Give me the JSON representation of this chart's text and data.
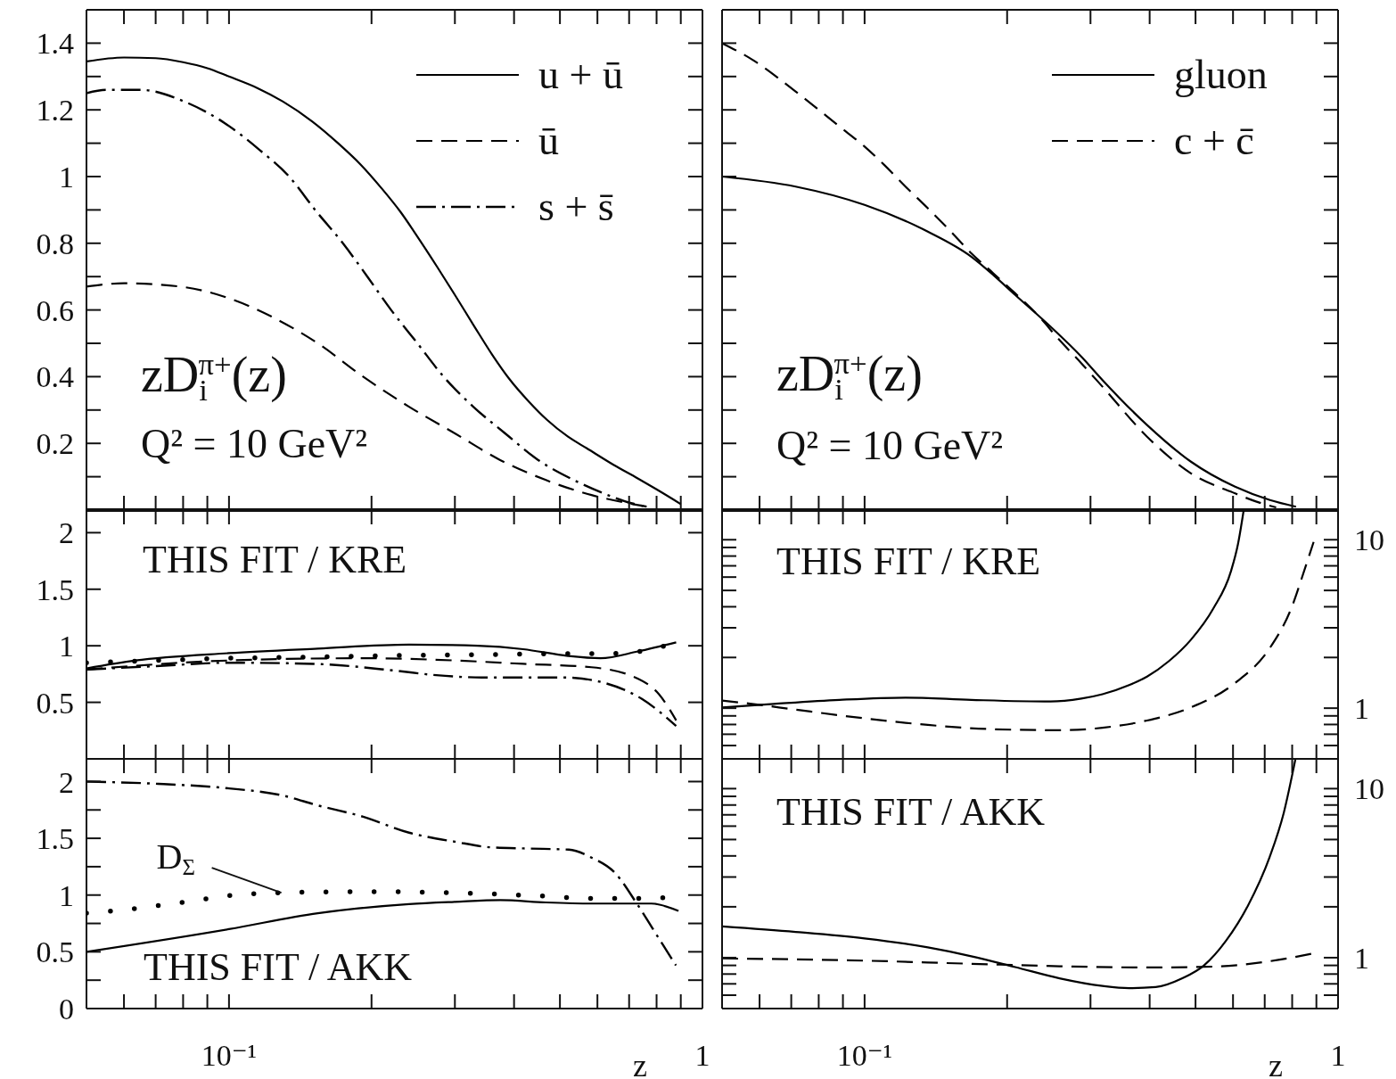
{
  "chart_data": [
    {
      "type": "line",
      "log": "x",
      "tick_labels": "y",
      "legend": "top right",
      "xlim": [
        0.05,
        1
      ],
      "xticks": [
        {
          "value": 0.06,
          "label": null
        },
        {
          "value": 0.07,
          "label": null
        },
        {
          "value": 0.08,
          "label": null
        },
        {
          "value": 0.09,
          "label": null
        },
        {
          "value": 0.1,
          "label": null
        },
        {
          "value": 0.2,
          "label": null
        },
        {
          "value": 0.3,
          "label": null
        },
        {
          "value": 0.4,
          "label": null
        },
        {
          "value": 0.5,
          "label": null
        },
        {
          "value": 0.6,
          "label": null
        },
        {
          "value": 0.7,
          "label": null
        },
        {
          "value": 0.8,
          "label": null
        },
        {
          "value": 0.9,
          "label": null
        },
        {
          "value": 1,
          "label": null
        }
      ],
      "ylim": [
        0,
        1.5
      ],
      "yticks": [
        {
          "value": 0.1,
          "label": null
        },
        0.2,
        {
          "value": 0.3,
          "label": null
        },
        0.4,
        {
          "value": 0.5,
          "label": null
        },
        0.6,
        {
          "value": 0.7,
          "label": null
        },
        0.8,
        {
          "value": 0.9,
          "label": null
        },
        1,
        {
          "value": 1.1,
          "label": null
        },
        1.2,
        {
          "value": 1.3,
          "label": null
        },
        1.4
      ],
      "annotations": [
        "zD$_{i}$$^{π+}$(z)",
        "Q² = 10 GeV²"
      ],
      "series": [
        {
          "name": "u + ū",
          "color": "#000000",
          "line_style": "solid",
          "x": [
            0.05,
            0.06,
            0.07,
            0.08,
            0.09,
            0.1,
            0.115,
            0.13,
            0.15,
            0.17,
            0.19,
            0.21,
            0.23,
            0.25,
            0.275,
            0.3,
            0.33,
            0.36,
            0.39,
            0.43,
            0.47,
            0.52,
            0.57,
            0.65,
            0.73,
            0.8,
            0.9
          ],
          "values": [
            1.345,
            1.357,
            1.355,
            1.343,
            1.325,
            1.3,
            1.265,
            1.225,
            1.165,
            1.1,
            1.035,
            0.965,
            0.895,
            0.82,
            0.73,
            0.645,
            0.55,
            0.465,
            0.395,
            0.325,
            0.27,
            0.22,
            0.185,
            0.135,
            0.095,
            0.062,
            0.018
          ]
        },
        {
          "name": "ū",
          "color": "#000000",
          "line_style": "dashed",
          "x": [
            0.05,
            0.06,
            0.079,
            0.1,
            0.123,
            0.154,
            0.192,
            0.24,
            0.3,
            0.374,
            0.467,
            0.583,
            0.7,
            0.78
          ],
          "values": [
            0.67,
            0.68,
            0.67,
            0.635,
            0.58,
            0.5,
            0.4,
            0.31,
            0.23,
            0.15,
            0.09,
            0.045,
            0.02,
            0.008
          ]
        },
        {
          "name": "s + s̄",
          "color": "#000000",
          "line_style": "dashdot",
          "x": [
            0.05,
            0.055,
            0.065,
            0.082,
            0.098,
            0.116,
            0.134,
            0.152,
            0.174,
            0.196,
            0.22,
            0.25,
            0.284,
            0.328,
            0.383,
            0.45,
            0.535,
            0.645,
            0.71,
            0.76
          ],
          "values": [
            1.25,
            1.26,
            1.26,
            1.22,
            1.16,
            1.08,
            1.0,
            0.9,
            0.8,
            0.7,
            0.6,
            0.5,
            0.4,
            0.31,
            0.23,
            0.15,
            0.09,
            0.04,
            0.02,
            0.01
          ]
        }
      ]
    },
    {
      "type": "line",
      "log": "x",
      "tick_labels": false,
      "legend": "top right",
      "xlim": [
        0.05,
        1
      ],
      "xticks": [
        {
          "value": 0.06,
          "label": null
        },
        {
          "value": 0.07,
          "label": null
        },
        {
          "value": 0.08,
          "label": null
        },
        {
          "value": 0.09,
          "label": null
        },
        {
          "value": 0.1,
          "label": null
        },
        {
          "value": 0.2,
          "label": null
        },
        {
          "value": 0.3,
          "label": null
        },
        {
          "value": 0.4,
          "label": null
        },
        {
          "value": 0.5,
          "label": null
        },
        {
          "value": 0.6,
          "label": null
        },
        {
          "value": 0.7,
          "label": null
        },
        {
          "value": 0.8,
          "label": null
        },
        {
          "value": 0.9,
          "label": null
        },
        {
          "value": 1,
          "label": null
        }
      ],
      "ylim": [
        0,
        1.5
      ],
      "yticks": [
        {
          "value": 0.1,
          "label": null
        },
        0.2,
        {
          "value": 0.3,
          "label": null
        },
        0.4,
        {
          "value": 0.5,
          "label": null
        },
        0.6,
        {
          "value": 0.7,
          "label": null
        },
        0.8,
        {
          "value": 0.9,
          "label": null
        },
        1,
        {
          "value": 1.1,
          "label": null
        },
        1.2,
        {
          "value": 1.3,
          "label": null
        },
        1.4
      ],
      "annotations": [
        "zD$_{i}$$^{π+}$(z)",
        "Q² = 10 GeV²"
      ],
      "series": [
        {
          "name": "gluon",
          "color": "#000000",
          "line_style": "solid",
          "x": [
            0.05,
            0.0715,
            0.1,
            0.136,
            0.168,
            0.187,
            0.208,
            0.247,
            0.287,
            0.318,
            0.395,
            0.489,
            0.606,
            0.718,
            0.815
          ],
          "values": [
            1.0,
            0.97,
            0.915,
            0.835,
            0.76,
            0.705,
            0.645,
            0.55,
            0.46,
            0.39,
            0.255,
            0.145,
            0.07,
            0.03,
            0.01
          ]
        },
        {
          "name": "c + c̄",
          "color": "#000000",
          "line_style": "dashed",
          "x": [
            0.05,
            0.058,
            0.0715,
            0.0885,
            0.1,
            0.11,
            0.122,
            0.136,
            0.151,
            0.168,
            0.187,
            0.208,
            0.232,
            0.258,
            0.287,
            0.318,
            0.395,
            0.489,
            0.606,
            0.673,
            0.74
          ],
          "values": [
            1.4,
            1.35,
            1.255,
            1.15,
            1.09,
            1.035,
            0.97,
            0.905,
            0.84,
            0.77,
            0.71,
            0.65,
            0.585,
            0.51,
            0.44,
            0.37,
            0.22,
            0.11,
            0.05,
            0.025,
            0.008
          ]
        }
      ]
    },
    {
      "type": "line",
      "log": "x",
      "tick_labels": "y",
      "xlim": [
        0.05,
        1
      ],
      "xticks": [
        {
          "value": 0.06,
          "label": null
        },
        {
          "value": 0.07,
          "label": null
        },
        {
          "value": 0.08,
          "label": null
        },
        {
          "value": 0.09,
          "label": null
        },
        {
          "value": 0.1,
          "label": null
        },
        {
          "value": 0.2,
          "label": null
        },
        {
          "value": 0.3,
          "label": null
        },
        {
          "value": 0.4,
          "label": null
        },
        {
          "value": 0.5,
          "label": null
        },
        {
          "value": 0.6,
          "label": null
        },
        {
          "value": 0.7,
          "label": null
        },
        {
          "value": 0.8,
          "label": null
        },
        {
          "value": 0.9,
          "label": null
        },
        {
          "value": 1,
          "label": null
        }
      ],
      "ylim": [
        0,
        2.2
      ],
      "yticks": [
        0.5,
        1,
        1.5,
        2
      ],
      "annotations": [
        "THIS FIT / KRE"
      ],
      "series": [
        {
          "color": "#000000",
          "line_style": "solid",
          "x": [
            0.05,
            0.0634,
            0.1,
            0.154,
            0.24,
            0.335,
            0.418,
            0.52,
            0.609,
            0.73,
            0.88
          ],
          "values": [
            0.8,
            0.87,
            0.935,
            0.975,
            1.01,
            1.0,
            0.97,
            0.91,
            0.89,
            0.95,
            1.03
          ]
        },
        {
          "color": "#000000",
          "line_style": "dashed",
          "x": [
            0.05,
            0.1,
            0.192,
            0.3,
            0.418,
            0.583,
            0.73,
            0.81,
            0.88
          ],
          "values": [
            0.79,
            0.87,
            0.89,
            0.87,
            0.84,
            0.81,
            0.71,
            0.57,
            0.34
          ]
        },
        {
          "color": "#000000",
          "line_style": "dashdot",
          "x": [
            0.05,
            0.07,
            0.1,
            0.151,
            0.2245,
            0.274,
            0.342,
            0.511,
            0.623,
            0.745,
            0.88
          ],
          "values": [
            0.79,
            0.82,
            0.85,
            0.84,
            0.78,
            0.74,
            0.72,
            0.72,
            0.67,
            0.53,
            0.29
          ]
        },
        {
          "color": "#000000",
          "line_style": "dotted",
          "x": [
            0.05,
            0.07,
            0.1,
            0.15,
            0.2,
            0.3,
            0.4,
            0.5,
            0.6,
            0.7,
            0.8,
            0.88
          ],
          "values": [
            0.85,
            0.87,
            0.89,
            0.9,
            0.91,
            0.92,
            0.925,
            0.93,
            0.93,
            0.94,
            0.98,
            1.03
          ]
        }
      ]
    },
    {
      "type": "line",
      "log": "xy",
      "tick_labels": "y",
      "xlim": [
        0.05,
        1
      ],
      "xticks": [
        {
          "value": 0.06,
          "label": null
        },
        {
          "value": 0.07,
          "label": null
        },
        {
          "value": 0.08,
          "label": null
        },
        {
          "value": 0.09,
          "label": null
        },
        {
          "value": 0.1,
          "label": null
        },
        {
          "value": 0.2,
          "label": null
        },
        {
          "value": 0.3,
          "label": null
        },
        {
          "value": 0.4,
          "label": null
        },
        {
          "value": 0.5,
          "label": null
        },
        {
          "value": 0.6,
          "label": null
        },
        {
          "value": 0.7,
          "label": null
        },
        {
          "value": 0.8,
          "label": null
        },
        {
          "value": 0.9,
          "label": null
        },
        {
          "value": 1,
          "label": null
        }
      ],
      "ylim": [
        0.5,
        15
      ],
      "yticks": [
        {
          "value": 0.6,
          "label": null
        },
        {
          "value": 0.7,
          "label": null
        },
        {
          "value": 0.8,
          "label": null
        },
        {
          "value": 0.9,
          "label": null
        },
        1,
        {
          "value": 2,
          "label": null
        },
        {
          "value": 3,
          "label": null
        },
        {
          "value": 4,
          "label": null
        },
        {
          "value": 5,
          "label": null
        },
        {
          "value": 6,
          "label": null
        },
        {
          "value": 7,
          "label": null
        },
        {
          "value": 8,
          "label": null
        },
        {
          "value": 9,
          "label": null
        },
        10
      ],
      "annotations": [
        "THIS FIT / KRE"
      ],
      "series": [
        {
          "color": "#000000",
          "line_style": "solid",
          "x": [
            0.05,
            0.0643,
            0.0885,
            0.122,
            0.168,
            0.247,
            0.287,
            0.318,
            0.362,
            0.395,
            0.439,
            0.489,
            0.545,
            0.594,
            0.615,
            0.632
          ],
          "values": [
            1.01,
            1.06,
            1.12,
            1.155,
            1.12,
            1.095,
            1.14,
            1.21,
            1.37,
            1.54,
            1.9,
            2.55,
            3.9,
            6.5,
            9.5,
            15
          ]
        },
        {
          "color": "#000000",
          "line_style": "dashed",
          "x": [
            0.05,
            0.0578,
            0.0715,
            0.1,
            0.136,
            0.187,
            0.258,
            0.318,
            0.395,
            0.489,
            0.606,
            0.718,
            0.797,
            0.852,
            0.888
          ],
          "values": [
            1.11,
            1.06,
            0.98,
            0.87,
            0.795,
            0.75,
            0.74,
            0.765,
            0.845,
            1.01,
            1.41,
            2.28,
            3.93,
            6.8,
            9.7
          ]
        }
      ]
    },
    {
      "type": "line",
      "log": "x",
      "xlabel": "z",
      "xlim": [
        0.05,
        1
      ],
      "xticks": [
        {
          "value": 0.06,
          "label": null
        },
        {
          "value": 0.07,
          "label": null
        },
        {
          "value": 0.08,
          "label": null
        },
        {
          "value": 0.09,
          "label": null
        },
        {
          "value": 0.1,
          "label": "10⁻¹"
        },
        {
          "value": 0.2,
          "label": null
        },
        {
          "value": 0.3,
          "label": null
        },
        {
          "value": 0.4,
          "label": null
        },
        {
          "value": 0.5,
          "label": null
        },
        {
          "value": 0.6,
          "label": null
        },
        {
          "value": 0.7,
          "label": null
        },
        {
          "value": 0.8,
          "label": null
        },
        {
          "value": 0.9,
          "label": null
        },
        1
      ],
      "ylim": [
        0,
        2.2
      ],
      "yticks": [
        0,
        {
          "value": 0.25,
          "label": null
        },
        0.5,
        {
          "value": 0.75,
          "label": null
        },
        1,
        {
          "value": 1.25,
          "label": null
        },
        1.5,
        {
          "value": 1.75,
          "label": null
        },
        2
      ],
      "annotations": [
        "THIS FIT / AKK",
        {
          "text": "D$_{Σ}$",
          "x": 0.129,
          "y": 1.02
        }
      ],
      "series": [
        {
          "color": "#000000",
          "line_style": "solid",
          "x": [
            0.05,
            0.1,
            0.154,
            0.24,
            0.3,
            0.374,
            0.467,
            0.583,
            0.78,
            0.89
          ],
          "values": [
            0.5,
            0.7,
            0.84,
            0.92,
            0.94,
            0.955,
            0.935,
            0.925,
            0.925,
            0.86
          ]
        },
        {
          "color": "#000000",
          "line_style": "dashdot",
          "x": [
            0.05,
            0.0709,
            0.1,
            0.129,
            0.154,
            0.192,
            0.24,
            0.3,
            0.358,
            0.428,
            0.522,
            0.583,
            0.652,
            0.728,
            0.814,
            0.879
          ],
          "values": [
            2.0,
            1.98,
            1.94,
            1.88,
            1.79,
            1.69,
            1.55,
            1.47,
            1.42,
            1.41,
            1.4,
            1.33,
            1.2,
            0.92,
            0.6,
            0.38
          ]
        },
        {
          "color": "#000000",
          "line_style": "dotted",
          "x": [
            0.05,
            0.057,
            0.081,
            0.103,
            0.129,
            0.192,
            0.3,
            0.467,
            0.583,
            0.76,
            0.85
          ],
          "values": [
            0.84,
            0.86,
            0.94,
            1.0,
            1.02,
            1.03,
            1.02,
            0.99,
            0.97,
            0.97,
            0.98
          ]
        }
      ]
    },
    {
      "type": "line",
      "log": "xy",
      "xlabel": "z",
      "xlim": [
        0.05,
        1
      ],
      "xticks": [
        {
          "value": 0.06,
          "label": null
        },
        {
          "value": 0.07,
          "label": null
        },
        {
          "value": 0.08,
          "label": null
        },
        {
          "value": 0.09,
          "label": null
        },
        {
          "value": 0.1,
          "label": "10⁻¹"
        },
        {
          "value": 0.2,
          "label": null
        },
        {
          "value": 0.3,
          "label": null
        },
        {
          "value": 0.4,
          "label": null
        },
        {
          "value": 0.5,
          "label": null
        },
        {
          "value": 0.6,
          "label": null
        },
        {
          "value": 0.7,
          "label": null
        },
        {
          "value": 0.8,
          "label": null
        },
        {
          "value": 0.9,
          "label": null
        },
        1
      ],
      "ylim": [
        0.5,
        15
      ],
      "yticks": [
        {
          "value": 0.6,
          "label": null
        },
        {
          "value": 0.7,
          "label": null
        },
        {
          "value": 0.8,
          "label": null
        },
        {
          "value": 0.9,
          "label": null
        },
        1,
        {
          "value": 2,
          "label": null
        },
        {
          "value": 3,
          "label": null
        },
        {
          "value": 4,
          "label": null
        },
        {
          "value": 5,
          "label": null
        },
        {
          "value": 6,
          "label": null
        },
        {
          "value": 7,
          "label": null
        },
        {
          "value": 8,
          "label": null
        },
        {
          "value": 9,
          "label": null
        },
        10
      ],
      "annotations": [
        "THIS FIT / AKK"
      ],
      "series": [
        {
          "color": "#000000",
          "line_style": "solid",
          "x": [
            0.05,
            0.0715,
            0.1,
            0.136,
            0.168,
            0.208,
            0.258,
            0.318,
            0.362,
            0.412,
            0.469,
            0.521,
            0.58,
            0.645,
            0.717,
            0.768,
            0.813
          ],
          "values": [
            1.53,
            1.42,
            1.3,
            1.15,
            1.02,
            0.88,
            0.755,
            0.68,
            0.66,
            0.67,
            0.755,
            0.9,
            1.26,
            2.03,
            3.94,
            7.2,
            15
          ]
        },
        {
          "color": "#000000",
          "line_style": "dashed",
          "x": [
            0.05,
            0.1,
            0.168,
            0.258,
            0.395,
            0.544,
            0.673,
            0.781,
            0.888
          ],
          "values": [
            0.99,
            0.96,
            0.92,
            0.89,
            0.875,
            0.885,
            0.93,
            0.99,
            1.06
          ]
        }
      ]
    }
  ]
}
